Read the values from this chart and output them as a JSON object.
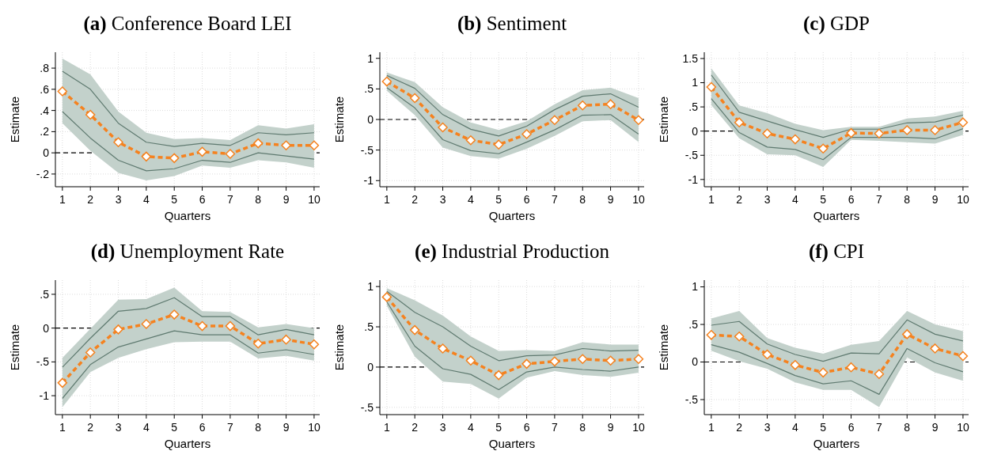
{
  "chart_data": [
    {
      "type": "line",
      "title": "(a) Conference Board LEI",
      "xlabel": "Quarters",
      "ylabel": "Estimate",
      "x": [
        1,
        2,
        3,
        4,
        5,
        6,
        7,
        8,
        9,
        10
      ],
      "xlim": [
        0.75,
        10.2
      ],
      "xticks": [
        1,
        2,
        3,
        4,
        5,
        6,
        7,
        8,
        9,
        10
      ],
      "ylim": [
        -0.32,
        0.95
      ],
      "yticks": [
        {
          "value": -0.2,
          "label": "-.2"
        },
        0,
        {
          "value": 0.2,
          "label": ".2"
        },
        {
          "value": 0.4,
          "label": ".4"
        },
        {
          "value": 0.6,
          "label": ".6"
        },
        {
          "value": 0.8,
          "label": ".8"
        }
      ],
      "grid": true,
      "ref_lines": [
        {
          "axis": "y",
          "value": 0,
          "color": "#000000",
          "line_style": "dashed"
        }
      ],
      "series": [
        {
          "type": "line",
          "color": "#f5821f",
          "marker": "diamond",
          "line_style": "dashed",
          "values": [
            0.58,
            0.36,
            0.1,
            -0.035,
            -0.05,
            0.01,
            -0.01,
            0.09,
            0.07,
            0.07
          ],
          "lower": [
            0.28,
            0.02,
            -0.19,
            -0.26,
            -0.22,
            -0.12,
            -0.14,
            -0.07,
            -0.09,
            -0.14
          ],
          "upper": [
            0.89,
            0.74,
            0.39,
            0.19,
            0.13,
            0.14,
            0.12,
            0.26,
            0.23,
            0.27
          ]
        },
        {
          "type": "line",
          "color": "#5f7a70",
          "marker": "none",
          "line_style": "solid",
          "values": [
            0.77,
            0.6,
            0.28,
            0.1,
            0.06,
            0.09,
            0.07,
            0.19,
            0.17,
            0.19
          ]
        },
        {
          "type": "line",
          "color": "#5f7a70",
          "marker": "none",
          "line_style": "solid",
          "values": [
            0.39,
            0.14,
            -0.07,
            -0.17,
            -0.15,
            -0.07,
            -0.09,
            0.0,
            -0.03,
            -0.06
          ]
        }
      ]
    },
    {
      "type": "line",
      "title": "(b) Sentiment",
      "xlabel": "Quarters",
      "ylabel": "Estimate",
      "x": [
        1,
        2,
        3,
        4,
        5,
        6,
        7,
        8,
        9,
        10
      ],
      "xlim": [
        0.75,
        10.2
      ],
      "xticks": [
        1,
        2,
        3,
        4,
        5,
        6,
        7,
        8,
        9,
        10
      ],
      "ylim": [
        -1.1,
        1.1
      ],
      "yticks": [
        -1,
        {
          "value": -0.5,
          "label": "-.5"
        },
        0,
        {
          "value": 0.5,
          "label": ".5"
        },
        1
      ],
      "grid": true,
      "ref_lines": [
        {
          "axis": "y",
          "value": 0,
          "color": "#000000",
          "line_style": "dashed"
        }
      ],
      "series": [
        {
          "type": "line",
          "color": "#f5821f",
          "marker": "diamond",
          "line_style": "dashed",
          "values": [
            0.62,
            0.35,
            -0.13,
            -0.34,
            -0.41,
            -0.24,
            -0.01,
            0.23,
            0.25,
            -0.01
          ],
          "lower": [
            0.47,
            0.07,
            -0.46,
            -0.6,
            -0.64,
            -0.48,
            -0.27,
            -0.03,
            -0.01,
            -0.37
          ],
          "upper": [
            0.77,
            0.61,
            0.2,
            -0.05,
            -0.17,
            -0.03,
            0.25,
            0.48,
            0.52,
            0.35
          ]
        },
        {
          "type": "line",
          "color": "#5f7a70",
          "marker": "none",
          "line_style": "solid",
          "values": [
            0.72,
            0.51,
            0.08,
            -0.16,
            -0.27,
            -0.11,
            0.16,
            0.38,
            0.42,
            0.2
          ]
        },
        {
          "type": "line",
          "color": "#5f7a70",
          "marker": "none",
          "line_style": "solid",
          "values": [
            0.52,
            0.19,
            -0.33,
            -0.51,
            -0.56,
            -0.37,
            -0.17,
            0.07,
            0.08,
            -0.24
          ]
        }
      ]
    },
    {
      "type": "line",
      "title": "(c) GDP",
      "xlabel": "Quarters",
      "ylabel": "Estimate",
      "x": [
        1,
        2,
        3,
        4,
        5,
        6,
        7,
        8,
        9,
        10
      ],
      "xlim": [
        0.75,
        10.2
      ],
      "xticks": [
        1,
        2,
        3,
        4,
        5,
        6,
        7,
        8,
        9,
        10
      ],
      "ylim": [
        -1.15,
        1.63
      ],
      "yticks": [
        -1,
        {
          "value": -0.5,
          "label": "-.5"
        },
        0,
        {
          "value": 0.5,
          "label": ".5"
        },
        1,
        1.5
      ],
      "grid": true,
      "ref_lines": [
        {
          "axis": "y",
          "value": 0,
          "color": "#000000",
          "line_style": "dashed"
        }
      ],
      "series": [
        {
          "type": "line",
          "color": "#f5821f",
          "marker": "diamond",
          "line_style": "dashed",
          "values": [
            0.91,
            0.18,
            -0.05,
            -0.17,
            -0.36,
            -0.04,
            -0.05,
            0.02,
            0.02,
            0.18
          ],
          "lower": [
            0.54,
            -0.15,
            -0.48,
            -0.5,
            -0.74,
            -0.18,
            -0.2,
            -0.23,
            -0.26,
            -0.08
          ],
          "upper": [
            1.3,
            0.53,
            0.37,
            0.15,
            0.02,
            0.09,
            0.09,
            0.26,
            0.3,
            0.42
          ]
        },
        {
          "type": "line",
          "color": "#5f7a70",
          "marker": "none",
          "line_style": "solid",
          "values": [
            1.16,
            0.39,
            0.21,
            0.03,
            -0.13,
            0.04,
            0.04,
            0.17,
            0.19,
            0.33
          ]
        },
        {
          "type": "line",
          "color": "#5f7a70",
          "marker": "none",
          "line_style": "solid",
          "values": [
            0.67,
            -0.03,
            -0.33,
            -0.38,
            -0.59,
            -0.13,
            -0.13,
            -0.13,
            -0.16,
            0.05
          ]
        }
      ]
    },
    {
      "type": "line",
      "title": "(d) Unemployment Rate",
      "xlabel": "Quarters",
      "ylabel": "Estimate",
      "x": [
        1,
        2,
        3,
        4,
        5,
        6,
        7,
        8,
        9,
        10
      ],
      "xlim": [
        0.75,
        10.2
      ],
      "xticks": [
        1,
        2,
        3,
        4,
        5,
        6,
        7,
        8,
        9,
        10
      ],
      "ylim": [
        -1.28,
        0.71
      ],
      "yticks": [
        -1,
        {
          "value": -0.5,
          "label": "-.5"
        },
        0,
        {
          "value": 0.5,
          "label": ".5"
        }
      ],
      "grid": true,
      "ref_lines": [
        {
          "axis": "y",
          "value": 0,
          "color": "#000000",
          "line_style": "dashed"
        }
      ],
      "series": [
        {
          "type": "line",
          "color": "#f5821f",
          "marker": "diamond",
          "line_style": "dashed",
          "values": [
            -0.81,
            -0.36,
            -0.02,
            0.06,
            0.2,
            0.03,
            0.03,
            -0.23,
            -0.17,
            -0.24
          ],
          "lower": [
            -1.17,
            -0.65,
            -0.44,
            -0.31,
            -0.21,
            -0.2,
            -0.2,
            -0.45,
            -0.41,
            -0.48
          ],
          "upper": [
            -0.44,
            -0.01,
            0.42,
            0.43,
            0.6,
            0.25,
            0.24,
            0.01,
            0.06,
            0.0
          ]
        },
        {
          "type": "line",
          "color": "#5f7a70",
          "marker": "none",
          "line_style": "solid",
          "values": [
            -0.58,
            -0.15,
            0.25,
            0.29,
            0.45,
            0.17,
            0.17,
            -0.1,
            -0.02,
            -0.1
          ]
        },
        {
          "type": "line",
          "color": "#5f7a70",
          "marker": "none",
          "line_style": "solid",
          "values": [
            -1.04,
            -0.54,
            -0.28,
            -0.16,
            -0.04,
            -0.1,
            -0.1,
            -0.37,
            -0.32,
            -0.39
          ]
        }
      ]
    },
    {
      "type": "line",
      "title": "(e) Industrial Production",
      "xlabel": "Quarters",
      "ylabel": "Estimate",
      "x": [
        1,
        2,
        3,
        4,
        5,
        6,
        7,
        8,
        9,
        10
      ],
      "xlim": [
        0.75,
        10.2
      ],
      "xticks": [
        1,
        2,
        3,
        4,
        5,
        6,
        7,
        8,
        9,
        10
      ],
      "ylim": [
        -0.59,
        1.08
      ],
      "yticks": [
        {
          "value": -0.5,
          "label": "-.5"
        },
        0,
        {
          "value": 0.5,
          "label": ".5"
        },
        1
      ],
      "grid": true,
      "ref_lines": [
        {
          "axis": "y",
          "value": 0,
          "color": "#000000",
          "line_style": "dashed"
        }
      ],
      "series": [
        {
          "type": "line",
          "color": "#f5821f",
          "marker": "diamond",
          "line_style": "dashed",
          "values": [
            0.87,
            0.46,
            0.23,
            0.08,
            -0.1,
            0.04,
            0.07,
            0.1,
            0.08,
            0.1
          ],
          "lower": [
            0.76,
            0.13,
            -0.18,
            -0.21,
            -0.39,
            -0.13,
            -0.05,
            -0.1,
            -0.12,
            -0.07
          ],
          "upper": [
            0.98,
            0.83,
            0.64,
            0.38,
            0.2,
            0.21,
            0.2,
            0.31,
            0.28,
            0.28
          ]
        },
        {
          "type": "line",
          "color": "#5f7a70",
          "marker": "none",
          "line_style": "solid",
          "values": [
            0.94,
            0.68,
            0.5,
            0.26,
            0.08,
            0.14,
            0.15,
            0.23,
            0.2,
            0.21
          ]
        },
        {
          "type": "line",
          "color": "#5f7a70",
          "marker": "none",
          "line_style": "solid",
          "values": [
            0.81,
            0.26,
            -0.02,
            -0.09,
            -0.28,
            -0.06,
            0.0,
            -0.03,
            -0.05,
            0.0
          ]
        }
      ]
    },
    {
      "type": "line",
      "title": "(f) CPI",
      "xlabel": "Quarters",
      "ylabel": "Estimate",
      "x": [
        1,
        2,
        3,
        4,
        5,
        6,
        7,
        8,
        9,
        10
      ],
      "xlim": [
        0.75,
        10.2
      ],
      "xticks": [
        1,
        2,
        3,
        4,
        5,
        6,
        7,
        8,
        9,
        10
      ],
      "ylim": [
        -0.7,
        1.09
      ],
      "yticks": [
        {
          "value": -0.5,
          "label": "-.5"
        },
        0,
        {
          "value": 0.5,
          "label": ".5"
        },
        1
      ],
      "grid": true,
      "ref_lines": [
        {
          "axis": "y",
          "value": 0,
          "color": "#000000",
          "line_style": "dashed"
        }
      ],
      "series": [
        {
          "type": "line",
          "color": "#f5821f",
          "marker": "diamond",
          "line_style": "dashed",
          "values": [
            0.36,
            0.34,
            0.1,
            -0.04,
            -0.14,
            -0.07,
            -0.16,
            0.37,
            0.18,
            0.08
          ],
          "lower": [
            0.15,
            0.01,
            -0.09,
            -0.27,
            -0.37,
            -0.37,
            -0.6,
            0.06,
            -0.14,
            -0.25
          ],
          "upper": [
            0.58,
            0.68,
            0.32,
            0.19,
            0.11,
            0.23,
            0.28,
            0.68,
            0.5,
            0.41
          ]
        },
        {
          "type": "line",
          "color": "#5f7a70",
          "marker": "none",
          "line_style": "solid",
          "values": [
            0.49,
            0.54,
            0.24,
            0.1,
            0.01,
            0.12,
            0.11,
            0.56,
            0.37,
            0.28
          ]
        },
        {
          "type": "line",
          "color": "#5f7a70",
          "marker": "none",
          "line_style": "solid",
          "values": [
            0.23,
            0.13,
            -0.02,
            -0.18,
            -0.29,
            -0.25,
            -0.43,
            0.18,
            -0.01,
            -0.13
          ]
        }
      ]
    }
  ]
}
